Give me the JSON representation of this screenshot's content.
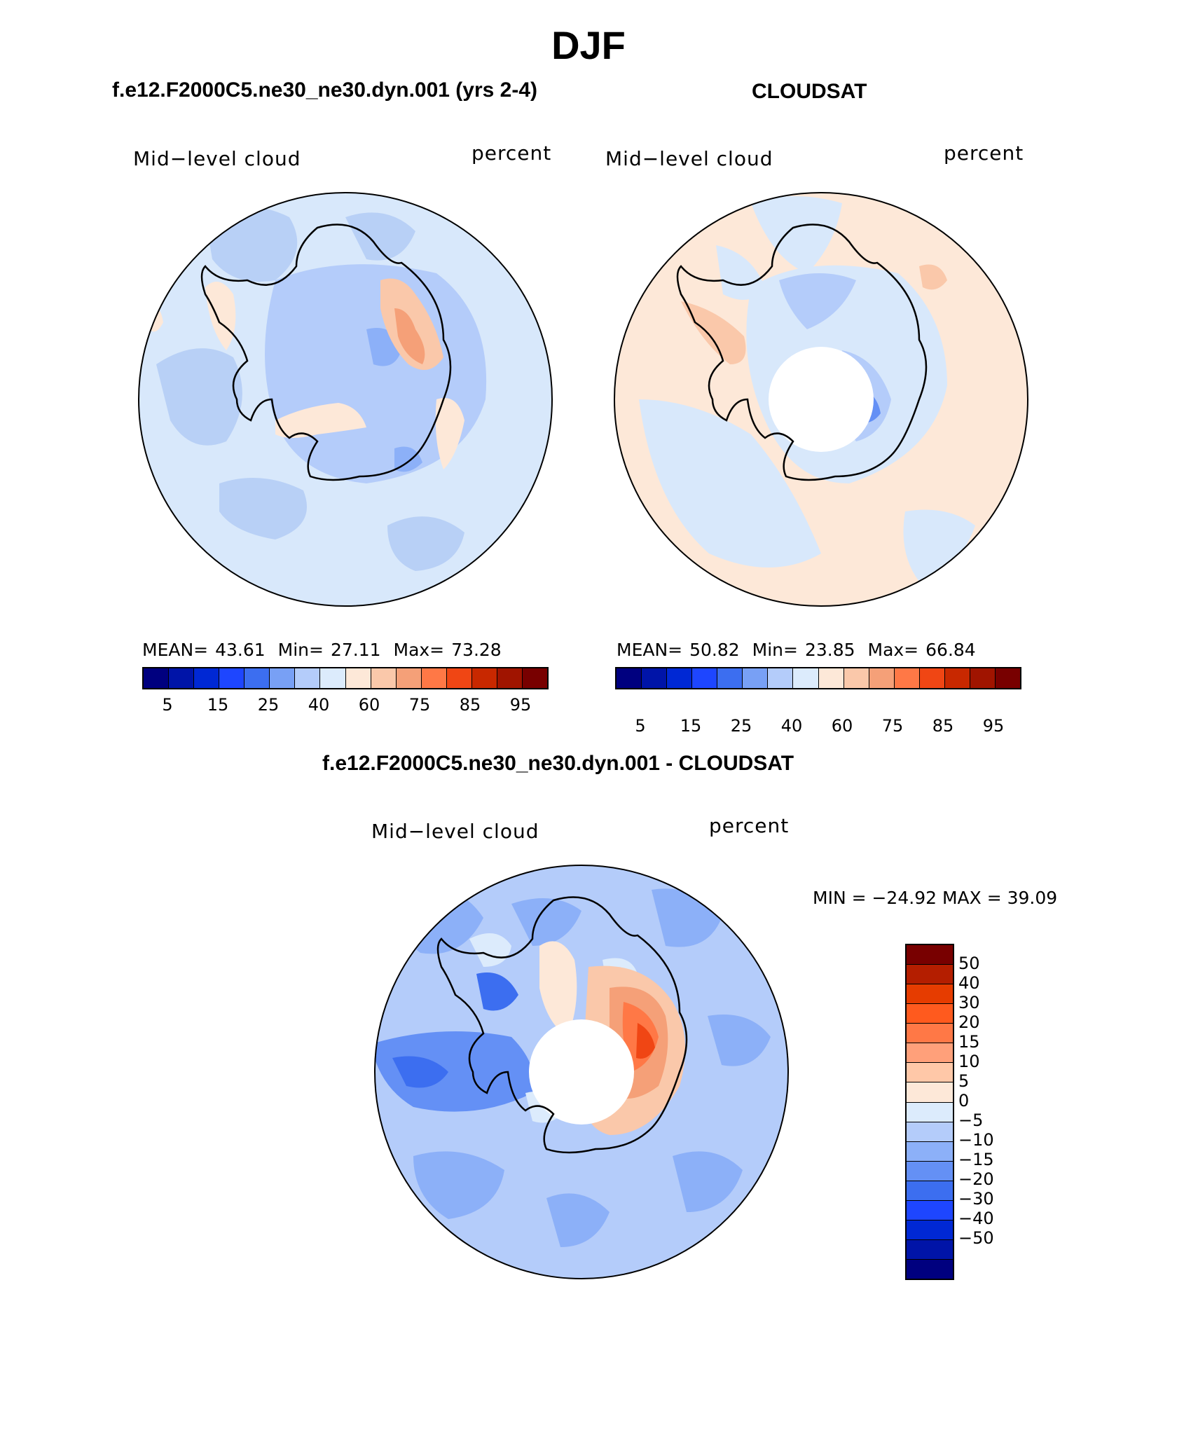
{
  "title": "DJF",
  "panel_left": {
    "title": "f.e12.F2000C5.ne30_ne30.dyn.001 (yrs 2-4)",
    "variable": "Mid−level cloud",
    "units": "percent",
    "stats": {
      "mean_label": "MEAN=",
      "mean": "43.61",
      "min_label": "Min=",
      "min": "27.11",
      "max_label": "Max=",
      "max": "73.28"
    }
  },
  "panel_right": {
    "title": "CLOUDSAT",
    "variable": "Mid−level cloud",
    "units": "percent",
    "stats": {
      "mean_label": "MEAN=",
      "mean": "50.82",
      "min_label": "Min=",
      "min": "23.85",
      "max_label": "Max=",
      "max": "66.84"
    }
  },
  "panel_diff": {
    "title": "f.e12.F2000C5.ne30_ne30.dyn.001 - CLOUDSAT",
    "variable": "Mid−level cloud",
    "units": "percent",
    "minmax": "MIN = −24.92 MAX =   39.09"
  },
  "colorbar_abs": {
    "colors": [
      "#00007f",
      "#0014a8",
      "#0028d4",
      "#1e46ff",
      "#3c6ef0",
      "#78a0f5",
      "#b4ccfa",
      "#dcebfc",
      "#fde8d8",
      "#fac8aa",
      "#f5a078",
      "#ff7846",
      "#f04614",
      "#c82800",
      "#a01400",
      "#780000"
    ],
    "tick_labels": [
      "5",
      "15",
      "25",
      "40",
      "60",
      "75",
      "85",
      "95"
    ]
  },
  "colorbar_diff": {
    "colors": [
      "#780000",
      "#b41e00",
      "#e63c00",
      "#ff5a1e",
      "#ff7846",
      "#ffa07a",
      "#ffc8a8",
      "#fde8d8",
      "#dcebfc",
      "#b4ccfa",
      "#8cb0f8",
      "#6490f5",
      "#3c6ef0",
      "#1e46ff",
      "#0028d4",
      "#0014a8",
      "#00007f"
    ],
    "tick_labels": [
      "50",
      "40",
      "30",
      "20",
      "15",
      "10",
      "5",
      "0",
      "−5",
      "−10",
      "−15",
      "−20",
      "−30",
      "−40",
      "−50"
    ]
  },
  "chart_data": [
    {
      "type": "heatmap",
      "projection": "south-polar-stereographic",
      "title": "f.e12.F2000C5.ne30_ne30.dyn.001 (yrs 2-4)",
      "field": "Mid-level cloud",
      "units": "percent",
      "mean": 43.61,
      "min": 27.11,
      "max": 73.28,
      "levels": [
        5,
        10,
        15,
        20,
        25,
        30,
        40,
        50,
        60,
        65,
        75,
        80,
        85,
        90,
        95
      ]
    },
    {
      "type": "heatmap",
      "projection": "south-polar-stereographic",
      "title": "CLOUDSAT",
      "field": "Mid-level cloud",
      "units": "percent",
      "mean": 50.82,
      "min": 23.85,
      "max": 66.84,
      "levels": [
        5,
        10,
        15,
        20,
        25,
        30,
        40,
        50,
        60,
        65,
        75,
        80,
        85,
        90,
        95
      ]
    },
    {
      "type": "heatmap",
      "projection": "south-polar-stereographic",
      "title": "f.e12.F2000C5.ne30_ne30.dyn.001 - CLOUDSAT",
      "field": "Mid-level cloud",
      "units": "percent",
      "min": -24.92,
      "max": 39.09,
      "levels": [
        -50,
        -40,
        -30,
        -20,
        -15,
        -10,
        -5,
        0,
        5,
        10,
        15,
        20,
        30,
        40,
        50
      ]
    }
  ]
}
